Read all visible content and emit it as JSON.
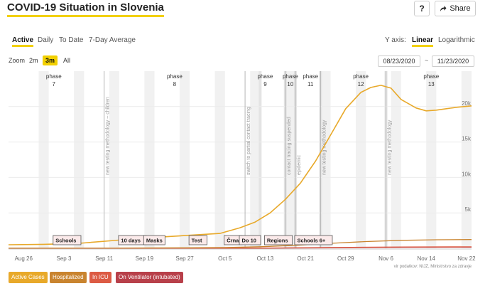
{
  "header": {
    "title": "COVID-19 Situation in Slovenia",
    "help_label": "?",
    "share_label": "Share"
  },
  "tabs": [
    {
      "label": "Active",
      "active": true
    },
    {
      "label": "Daily",
      "active": false
    },
    {
      "label": "To Date",
      "active": false
    },
    {
      "label": "7-Day Average",
      "active": false
    }
  ],
  "yaxis_toggle": {
    "label": "Y axis:",
    "options": [
      {
        "label": "Linear",
        "active": true
      },
      {
        "label": "Logarithmic",
        "active": false
      }
    ]
  },
  "zoom": {
    "label": "Zoom",
    "options": [
      {
        "label": "2m",
        "active": false
      },
      {
        "label": "3m",
        "active": true
      },
      {
        "label": "All",
        "active": false
      }
    ]
  },
  "date_range": {
    "from": "08/23/2020",
    "separator": "~",
    "to": "11/23/2020"
  },
  "legend": [
    {
      "label": "Active Cases",
      "color": "#e8a92a"
    },
    {
      "label": "Hospitalized",
      "color": "#c9842f"
    },
    {
      "label": "In ICU",
      "color": "#dc5b44"
    },
    {
      "label": "On Ventilator (intubated)",
      "color": "#b8404a"
    }
  ],
  "source_note": "vir podatkov: NIJZ, Ministrstvo za zdravje",
  "chart_data": {
    "type": "line",
    "title": "",
    "x_range": [
      "2020-08-23",
      "2020-11-23"
    ],
    "ylim": [
      0,
      25000
    ],
    "ytick_values": [
      5000,
      10000,
      15000,
      20000
    ],
    "ytick_labels": [
      "5k",
      "10k",
      "15k",
      "20k"
    ],
    "xticks": [
      {
        "date": "2020-08-26",
        "label": "Aug 26"
      },
      {
        "date": "2020-09-03",
        "label": "Sep 3"
      },
      {
        "date": "2020-09-11",
        "label": "Sep 11"
      },
      {
        "date": "2020-09-19",
        "label": "Sep 19"
      },
      {
        "date": "2020-09-27",
        "label": "Sep 27"
      },
      {
        "date": "2020-10-05",
        "label": "Oct 5"
      },
      {
        "date": "2020-10-13",
        "label": "Oct 13"
      },
      {
        "date": "2020-10-21",
        "label": "Oct 21"
      },
      {
        "date": "2020-10-29",
        "label": "Oct 29"
      },
      {
        "date": "2020-11-06",
        "label": "Nov 6"
      },
      {
        "date": "2020-11-14",
        "label": "Nov 14"
      },
      {
        "date": "2020-11-22",
        "label": "Nov 22"
      }
    ],
    "series": [
      {
        "name": "Active Cases",
        "color": "#e8a92a",
        "x": [
          "2020-08-23",
          "2020-08-30",
          "2020-09-06",
          "2020-09-13",
          "2020-09-20",
          "2020-09-27",
          "2020-10-04",
          "2020-10-08",
          "2020-10-11",
          "2020-10-14",
          "2020-10-17",
          "2020-10-20",
          "2020-10-23",
          "2020-10-26",
          "2020-10-29",
          "2020-11-01",
          "2020-11-03",
          "2020-11-05",
          "2020-11-07",
          "2020-11-09",
          "2020-11-12",
          "2020-11-14",
          "2020-11-16",
          "2020-11-18",
          "2020-11-20",
          "2020-11-23"
        ],
        "values": [
          500,
          560,
          700,
          1100,
          1500,
          1800,
          2100,
          2900,
          3700,
          5000,
          6900,
          9200,
          12300,
          16000,
          19700,
          22000,
          22700,
          23000,
          22600,
          21000,
          19800,
          19400,
          19500,
          19700,
          19900,
          20100
        ]
      },
      {
        "name": "Hospitalized",
        "color": "#c9842f",
        "x": [
          "2020-08-23",
          "2020-09-13",
          "2020-09-27",
          "2020-10-05",
          "2020-10-12",
          "2020-10-19",
          "2020-10-26",
          "2020-11-02",
          "2020-11-09",
          "2020-11-16",
          "2020-11-23"
        ],
        "values": [
          30,
          45,
          70,
          110,
          220,
          420,
          700,
          950,
          1120,
          1200,
          1230
        ]
      },
      {
        "name": "In ICU",
        "color": "#dc5b44",
        "x": [
          "2020-08-23",
          "2020-09-27",
          "2020-10-12",
          "2020-10-26",
          "2020-11-09",
          "2020-11-23"
        ],
        "values": [
          5,
          12,
          30,
          110,
          190,
          210
        ]
      },
      {
        "name": "On Ventilator (intubated)",
        "color": "#b8404a",
        "x": [
          "2020-08-23",
          "2020-09-27",
          "2020-10-12",
          "2020-10-26",
          "2020-11-09",
          "2020-11-23"
        ],
        "values": [
          2,
          6,
          18,
          70,
          140,
          170
        ]
      }
    ],
    "phases": [
      {
        "label": "phase",
        "num": "7",
        "center": "2020-09-01"
      },
      {
        "label": "phase",
        "num": "8",
        "center": "2020-09-25"
      },
      {
        "label": "phase",
        "num": "9",
        "center": "2020-10-13"
      },
      {
        "label": "phase",
        "num": "10",
        "center": "2020-10-18"
      },
      {
        "label": "phase",
        "num": "11",
        "center": "2020-10-22"
      },
      {
        "label": "phase",
        "num": "12",
        "center": "2020-11-01"
      },
      {
        "label": "phase",
        "num": "13",
        "center": "2020-11-15"
      }
    ],
    "phase_boundaries": [
      "2020-10-12",
      "2020-10-17",
      "2020-10-19",
      "2020-10-24",
      "2020-11-06"
    ],
    "vertical_annotations": [
      {
        "date": "2020-09-11",
        "text": "new testing methodology – children"
      },
      {
        "date": "2020-10-09",
        "text": "switch to partial contact tracing"
      },
      {
        "date": "2020-10-17",
        "text": "contact tracing suspended"
      },
      {
        "date": "2020-10-19",
        "text": "epidemic"
      },
      {
        "date": "2020-10-24",
        "text": "new testing methodology"
      },
      {
        "date": "2020-11-06",
        "text": "new testing methodology"
      }
    ],
    "event_labels": [
      {
        "date": "2020-09-01",
        "text": "Schools"
      },
      {
        "date": "2020-09-14",
        "text": "10 days"
      },
      {
        "date": "2020-09-19",
        "text": "Masks"
      },
      {
        "date": "2020-09-28",
        "text": "Test"
      },
      {
        "date": "2020-10-05",
        "text": "Črna"
      },
      {
        "date": "2020-10-08",
        "text": "Do 10"
      },
      {
        "date": "2020-10-13",
        "text": "Regions"
      },
      {
        "date": "2020-10-19",
        "text": "Schools 6+"
      }
    ]
  }
}
